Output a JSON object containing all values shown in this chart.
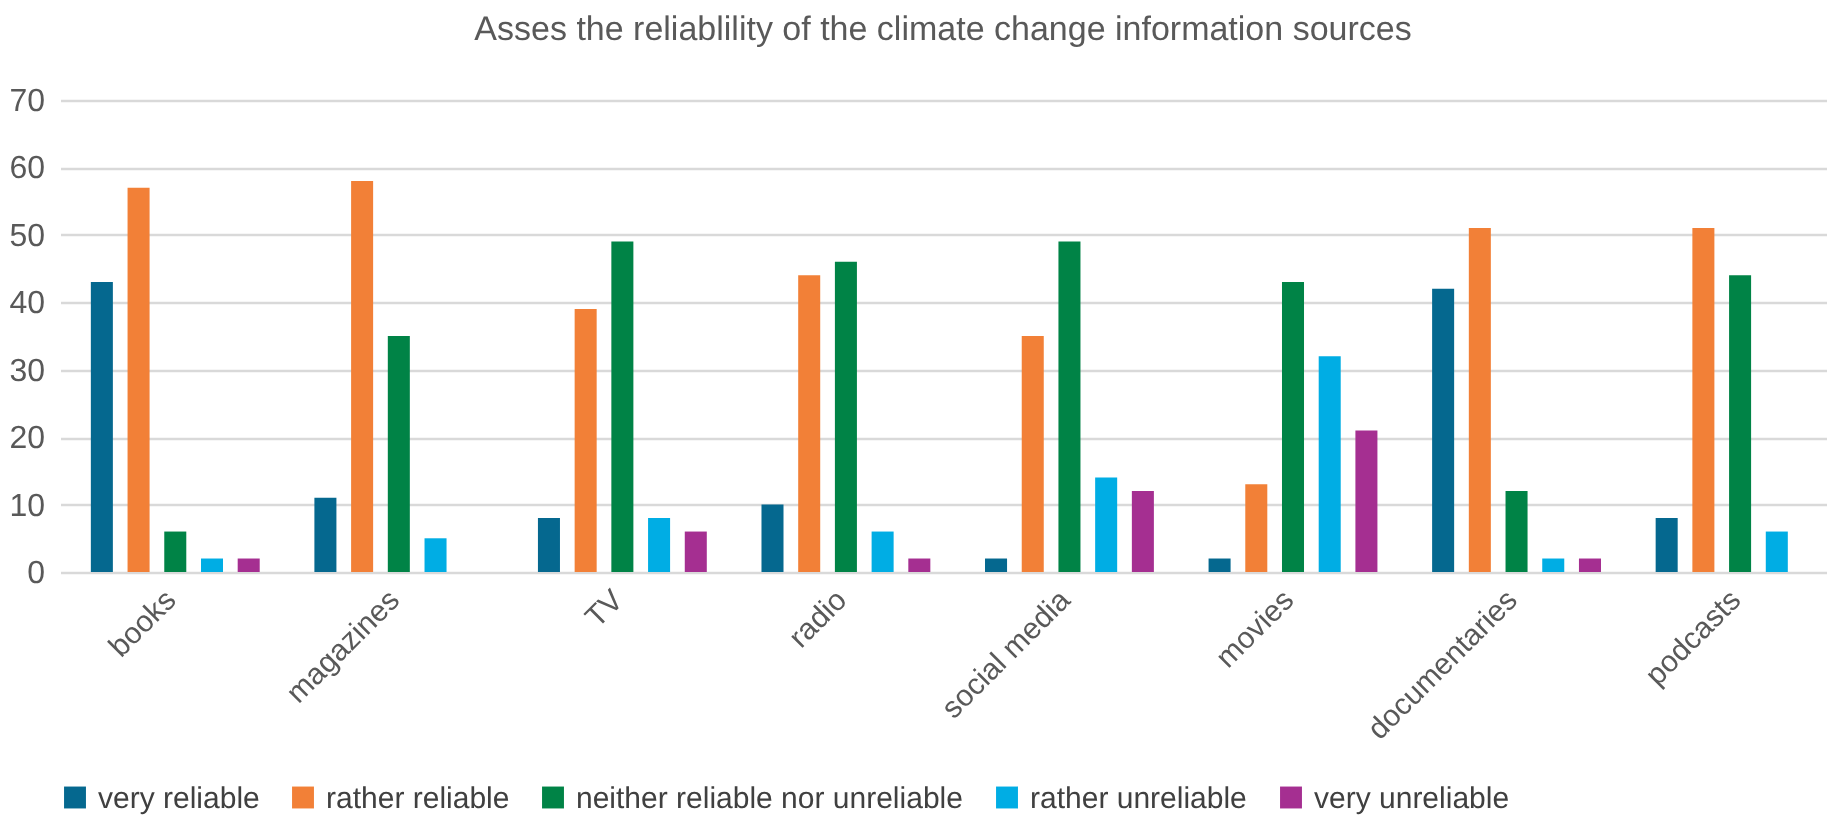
{
  "chart_data": {
    "type": "bar",
    "title": "Asses the reliablility of the climate change information sources",
    "categories": [
      "books",
      "magazines",
      "TV",
      "radio",
      "social media",
      "movies",
      "documentaries",
      "podcasts"
    ],
    "series": [
      {
        "name": "very reliable",
        "color": "#05688f",
        "values": [
          43,
          11,
          8,
          10,
          2,
          2,
          42,
          8
        ]
      },
      {
        "name": "rather reliable",
        "color": "#f28037",
        "values": [
          57,
          58,
          39,
          44,
          35,
          13,
          51,
          51
        ]
      },
      {
        "name": "neither reliable nor unreliable",
        "color": "#008346",
        "values": [
          6,
          35,
          49,
          46,
          49,
          43,
          12,
          44
        ]
      },
      {
        "name": "rather unreliable",
        "color": "#00ade4",
        "values": [
          2,
          5,
          8,
          6,
          14,
          32,
          2,
          6
        ]
      },
      {
        "name": "very unreliable",
        "color": "#a52f91",
        "values": [
          2,
          null,
          6,
          2,
          12,
          21,
          2,
          null
        ]
      }
    ],
    "ylim": [
      0,
      70
    ],
    "yticks": [
      0,
      10,
      20,
      30,
      40,
      50,
      60,
      70
    ],
    "grid": "y",
    "legend": "bottom"
  }
}
